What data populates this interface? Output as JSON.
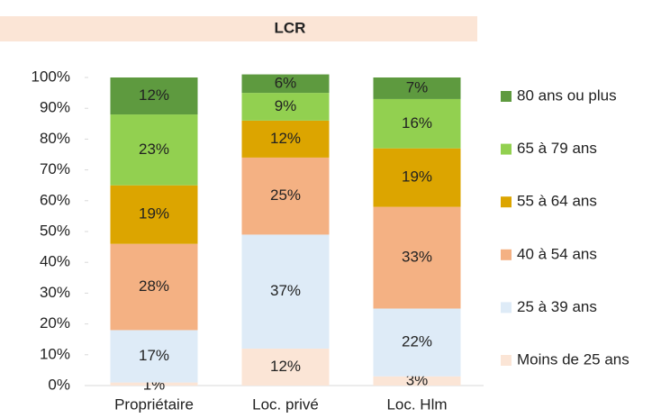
{
  "chart_data": {
    "type": "stacked_bar",
    "title": "LCR",
    "categories": [
      "Propriétaire",
      "Loc. privé",
      "Loc. Hlm"
    ],
    "series": [
      {
        "name": "Moins de 25 ans",
        "color": "#fbe5d6",
        "values": [
          1,
          12,
          3
        ],
        "value_labels": [
          "1%",
          "12%",
          "3%"
        ]
      },
      {
        "name": "25 à 39 ans",
        "color": "#deebf7",
        "values": [
          17,
          37,
          22
        ],
        "value_labels": [
          "17%",
          "37%",
          "22%"
        ]
      },
      {
        "name": "40 à 54 ans",
        "color": "#f4b183",
        "values": [
          28,
          25,
          33
        ],
        "value_labels": [
          "28%",
          "25%",
          "33%"
        ]
      },
      {
        "name": "55 à 64 ans",
        "color": "#dca500",
        "values": [
          19,
          12,
          19
        ],
        "value_labels": [
          "19%",
          "12%",
          "19%"
        ]
      },
      {
        "name": "65 à 79 ans",
        "color": "#92d050",
        "values": [
          23,
          9,
          16
        ],
        "value_labels": [
          "23%",
          "9%",
          "16%"
        ]
      },
      {
        "name": "80 ans ou plus",
        "color": "#5e9a3f",
        "values": [
          12,
          6,
          7
        ],
        "value_labels": [
          "12%",
          "6%",
          "7%"
        ]
      }
    ],
    "ylim": [
      0,
      100
    ],
    "yticks": [
      {
        "value": 0,
        "label": "0%"
      },
      {
        "value": 10,
        "label": "10%"
      },
      {
        "value": 20,
        "label": "20%"
      },
      {
        "value": 30,
        "label": "30%"
      },
      {
        "value": 40,
        "label": "40%"
      },
      {
        "value": 50,
        "label": "50%"
      },
      {
        "value": 60,
        "label": "60%"
      },
      {
        "value": 70,
        "label": "70%"
      },
      {
        "value": 80,
        "label": "80%"
      },
      {
        "value": 90,
        "label": "90%"
      },
      {
        "value": 100,
        "label": "100%"
      }
    ],
    "legend": "right",
    "grid": false
  }
}
